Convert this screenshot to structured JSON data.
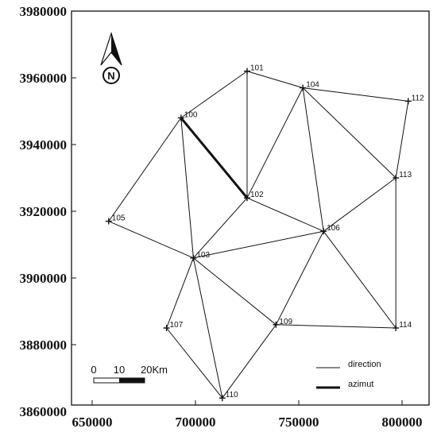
{
  "chart_data": {
    "type": "network-map",
    "xlim": [
      650000,
      800000
    ],
    "ylim": [
      3860000,
      3980000
    ],
    "x_ticks": [
      "650000",
      "700000",
      "750000",
      "800000"
    ],
    "y_ticks": [
      "3980000",
      "3960000",
      "3940000",
      "3920000",
      "3900000",
      "3880000",
      "3860000"
    ],
    "stations": [
      {
        "id": "100",
        "x": 693000,
        "y": 3948000
      },
      {
        "id": "101",
        "x": 725000,
        "y": 3962000
      },
      {
        "id": "102",
        "x": 725000,
        "y": 3924000
      },
      {
        "id": "103",
        "x": 699000,
        "y": 3906000
      },
      {
        "id": "104",
        "x": 752000,
        "y": 3957000
      },
      {
        "id": "105",
        "x": 658000,
        "y": 3917000
      },
      {
        "id": "106",
        "x": 762000,
        "y": 3914000
      },
      {
        "id": "107",
        "x": 686000,
        "y": 3885000
      },
      {
        "id": "109",
        "x": 739000,
        "y": 3886000
      },
      {
        "id": "110",
        "x": 713000,
        "y": 3864000
      },
      {
        "id": "112",
        "x": 803000,
        "y": 3953000
      },
      {
        "id": "113",
        "x": 797000,
        "y": 3930000
      },
      {
        "id": "114",
        "x": 797000,
        "y": 3885000
      }
    ],
    "direction_links": [
      [
        "100",
        "101"
      ],
      [
        "101",
        "102"
      ],
      [
        "101",
        "104"
      ],
      [
        "104",
        "112"
      ],
      [
        "104",
        "102"
      ],
      [
        "104",
        "106"
      ],
      [
        "104",
        "113"
      ],
      [
        "112",
        "113"
      ],
      [
        "113",
        "106"
      ],
      [
        "113",
        "114"
      ],
      [
        "102",
        "103"
      ],
      [
        "102",
        "106"
      ],
      [
        "105",
        "100"
      ],
      [
        "105",
        "103"
      ],
      [
        "100",
        "103"
      ],
      [
        "103",
        "106"
      ],
      [
        "103",
        "107"
      ],
      [
        "103",
        "109"
      ],
      [
        "103",
        "110"
      ],
      [
        "107",
        "110"
      ],
      [
        "110",
        "109"
      ],
      [
        "106",
        "109"
      ],
      [
        "106",
        "114"
      ],
      [
        "109",
        "114"
      ]
    ],
    "azimut_links": [
      [
        "100",
        "102"
      ]
    ],
    "legend": [
      {
        "label": "direction",
        "style": "thin"
      },
      {
        "label": "azimut",
        "style": "thick"
      }
    ],
    "scale_bar": {
      "labels": [
        "0",
        "10",
        "20Km"
      ]
    },
    "north_arrow": {
      "letter": "N"
    }
  }
}
